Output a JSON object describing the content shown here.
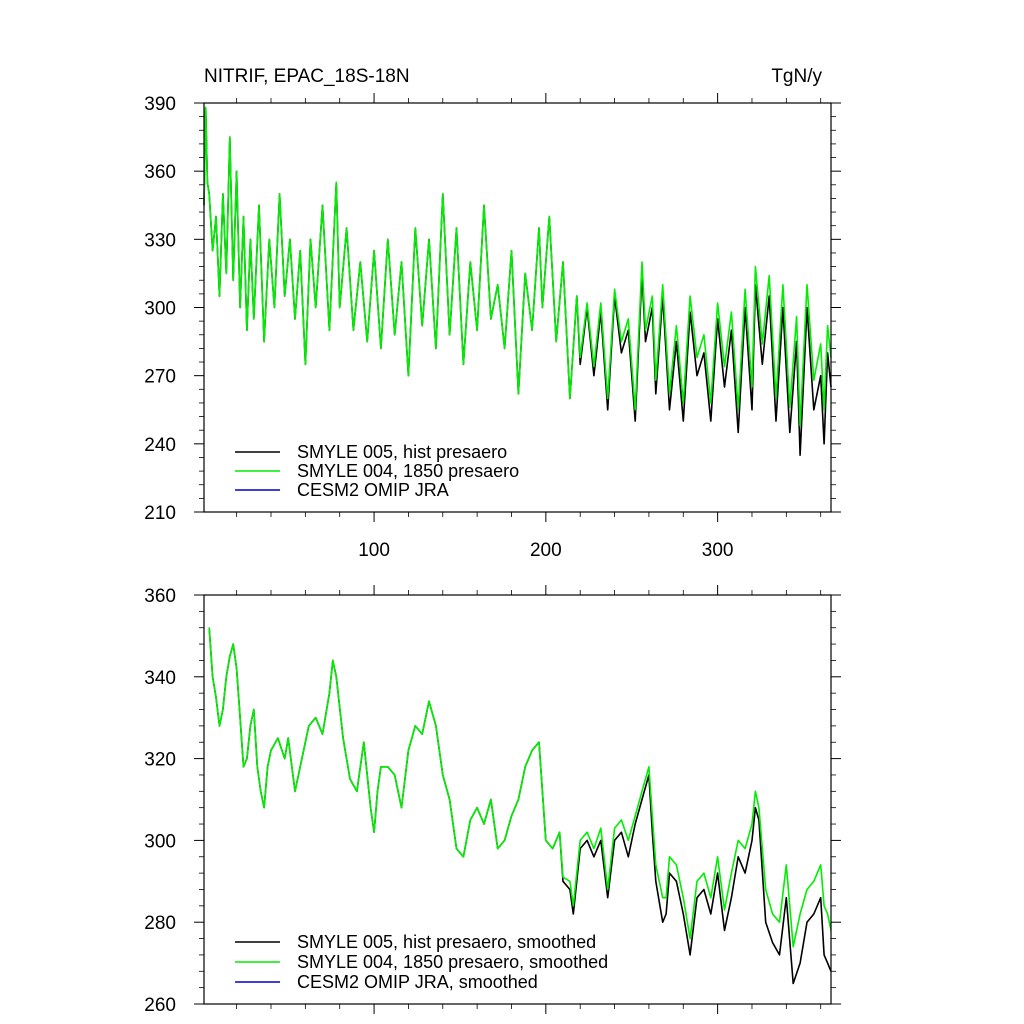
{
  "chart_data": [
    {
      "type": "line",
      "title": "NITRIF, EPAC_18S-18N",
      "units": "TgN/y",
      "xlim": [
        1,
        366
      ],
      "ylim": [
        210,
        390
      ],
      "yticks": [
        "210",
        "240",
        "270",
        "300",
        "330",
        "360",
        "390"
      ],
      "xticks": [
        "100",
        "200",
        "300"
      ],
      "legend_position": "bottom-left",
      "series": [
        {
          "name": "SMYLE 005, hist presaero",
          "color": "#000000",
          "x": [
            1,
            2,
            3,
            4,
            6,
            8,
            10,
            12,
            14,
            16,
            18,
            20,
            22,
            24,
            26,
            28,
            30,
            33,
            36,
            39,
            42,
            45,
            48,
            51,
            54,
            57,
            60,
            63,
            66,
            70,
            74,
            78,
            80,
            84,
            88,
            92,
            96,
            100,
            104,
            108,
            112,
            116,
            120,
            124,
            128,
            132,
            136,
            140,
            144,
            148,
            152,
            156,
            160,
            164,
            168,
            172,
            176,
            180,
            184,
            188,
            192,
            196,
            198,
            202,
            206,
            210,
            214,
            218,
            220,
            224,
            228,
            232,
            236,
            240,
            244,
            248,
            252,
            256,
            258,
            262,
            264,
            268,
            272,
            276,
            280,
            284,
            288,
            292,
            296,
            300,
            304,
            308,
            312,
            316,
            320,
            322,
            326,
            330,
            334,
            338,
            342,
            346,
            348,
            352,
            356,
            360,
            362,
            364,
            366
          ],
          "y": [
            345,
            388,
            355,
            350,
            325,
            340,
            305,
            350,
            315,
            375,
            312,
            360,
            300,
            340,
            290,
            330,
            295,
            345,
            285,
            330,
            300,
            350,
            305,
            330,
            295,
            325,
            275,
            330,
            300,
            345,
            290,
            355,
            300,
            335,
            290,
            320,
            285,
            325,
            282,
            330,
            288,
            320,
            270,
            335,
            292,
            330,
            282,
            350,
            288,
            335,
            275,
            320,
            290,
            345,
            295,
            310,
            282,
            325,
            262,
            315,
            290,
            335,
            300,
            340,
            285,
            320,
            260,
            305,
            275,
            300,
            270,
            298,
            255,
            305,
            280,
            290,
            250,
            315,
            285,
            300,
            262,
            305,
            255,
            285,
            250,
            298,
            270,
            280,
            250,
            295,
            265,
            290,
            245,
            300,
            255,
            310,
            275,
            305,
            250,
            300,
            245,
            285,
            235,
            300,
            255,
            270,
            240,
            280,
            265
          ]
        },
        {
          "name": "SMYLE 004, 1850 presaero",
          "color": "#00ee00",
          "x": [
            1,
            2,
            3,
            4,
            6,
            8,
            10,
            12,
            14,
            16,
            18,
            20,
            22,
            24,
            26,
            28,
            30,
            33,
            36,
            39,
            42,
            45,
            48,
            51,
            54,
            57,
            60,
            63,
            66,
            70,
            74,
            78,
            80,
            84,
            88,
            92,
            96,
            100,
            104,
            108,
            112,
            116,
            120,
            124,
            128,
            132,
            136,
            140,
            144,
            148,
            152,
            156,
            160,
            164,
            168,
            172,
            176,
            180,
            184,
            188,
            192,
            196,
            198,
            202,
            206,
            210,
            214,
            218,
            220,
            224,
            228,
            232,
            236,
            240,
            244,
            248,
            252,
            256,
            258,
            262,
            264,
            268,
            272,
            276,
            280,
            284,
            288,
            292,
            296,
            300,
            304,
            308,
            312,
            316,
            320,
            322,
            326,
            330,
            334,
            338,
            342,
            346,
            348,
            352,
            356,
            360,
            362,
            364,
            366
          ],
          "y": [
            345,
            388,
            355,
            350,
            325,
            340,
            305,
            350,
            315,
            375,
            312,
            360,
            300,
            340,
            290,
            330,
            295,
            345,
            285,
            330,
            300,
            350,
            305,
            330,
            295,
            325,
            275,
            330,
            300,
            345,
            290,
            355,
            300,
            335,
            290,
            320,
            285,
            325,
            282,
            330,
            288,
            320,
            270,
            335,
            292,
            330,
            282,
            350,
            288,
            335,
            275,
            320,
            290,
            345,
            295,
            310,
            282,
            325,
            262,
            315,
            290,
            335,
            300,
            340,
            285,
            320,
            260,
            305,
            278,
            302,
            274,
            302,
            260,
            308,
            285,
            295,
            255,
            320,
            290,
            305,
            268,
            310,
            262,
            292,
            258,
            305,
            278,
            288,
            258,
            302,
            274,
            298,
            255,
            308,
            265,
            318,
            284,
            314,
            260,
            310,
            256,
            296,
            248,
            310,
            268,
            284,
            255,
            292,
            278
          ]
        },
        {
          "name": "CESM2 OMIP JRA",
          "color": "#0000cc",
          "x": [],
          "y": []
        }
      ]
    },
    {
      "type": "line",
      "ylim": [
        260,
        360
      ],
      "yticks": [
        "260",
        "280",
        "300",
        "320",
        "340",
        "360"
      ],
      "xlim": [
        1,
        366
      ],
      "legend_position": "bottom-left",
      "series": [
        {
          "name": "SMYLE 005, hist presaero, smoothed",
          "color": "#000000",
          "x": [
            4,
            6,
            8,
            10,
            12,
            14,
            16,
            18,
            20,
            22,
            24,
            26,
            28,
            30,
            32,
            34,
            36,
            38,
            40,
            44,
            48,
            50,
            54,
            58,
            62,
            66,
            70,
            74,
            76,
            78,
            82,
            86,
            90,
            94,
            98,
            100,
            102,
            104,
            108,
            112,
            116,
            120,
            124,
            128,
            132,
            136,
            140,
            144,
            148,
            152,
            156,
            160,
            164,
            168,
            172,
            176,
            180,
            184,
            188,
            192,
            196,
            200,
            204,
            208,
            210,
            214,
            216,
            220,
            224,
            228,
            232,
            236,
            240,
            244,
            248,
            252,
            256,
            260,
            262,
            264,
            268,
            270,
            272,
            276,
            280,
            284,
            288,
            292,
            296,
            300,
            304,
            308,
            312,
            316,
            320,
            322,
            324,
            328,
            332,
            336,
            340,
            344,
            348,
            352,
            356,
            360,
            362,
            364,
            366
          ],
          "y": [
            352,
            340,
            335,
            328,
            332,
            340,
            345,
            348,
            342,
            330,
            318,
            320,
            328,
            332,
            318,
            312,
            308,
            318,
            322,
            325,
            320,
            325,
            312,
            320,
            328,
            330,
            326,
            336,
            344,
            340,
            325,
            315,
            312,
            324,
            308,
            302,
            312,
            318,
            318,
            316,
            308,
            322,
            328,
            326,
            334,
            328,
            316,
            310,
            298,
            296,
            305,
            308,
            304,
            310,
            298,
            300,
            306,
            310,
            318,
            322,
            324,
            300,
            298,
            302,
            290,
            288,
            282,
            298,
            300,
            296,
            300,
            286,
            300,
            302,
            296,
            304,
            310,
            316,
            302,
            290,
            280,
            282,
            292,
            290,
            282,
            272,
            286,
            288,
            282,
            292,
            278,
            286,
            296,
            292,
            300,
            308,
            305,
            280,
            275,
            272,
            286,
            265,
            270,
            280,
            282,
            286,
            272,
            270,
            268
          ]
        },
        {
          "name": "SMYLE 004, 1850 presaero, smoothed",
          "color": "#00ee00",
          "x": [
            4,
            6,
            8,
            10,
            12,
            14,
            16,
            18,
            20,
            22,
            24,
            26,
            28,
            30,
            32,
            34,
            36,
            38,
            40,
            44,
            48,
            50,
            54,
            58,
            62,
            66,
            70,
            74,
            76,
            78,
            82,
            86,
            90,
            94,
            98,
            100,
            102,
            104,
            108,
            112,
            116,
            120,
            124,
            128,
            132,
            136,
            140,
            144,
            148,
            152,
            156,
            160,
            164,
            168,
            172,
            176,
            180,
            184,
            188,
            192,
            196,
            200,
            204,
            208,
            210,
            214,
            216,
            220,
            224,
            228,
            232,
            236,
            240,
            244,
            248,
            252,
            256,
            260,
            262,
            264,
            268,
            270,
            272,
            276,
            280,
            284,
            288,
            292,
            296,
            300,
            304,
            308,
            312,
            316,
            320,
            322,
            324,
            328,
            332,
            336,
            340,
            344,
            348,
            352,
            356,
            360,
            362,
            364,
            366
          ],
          "y": [
            352,
            340,
            335,
            328,
            332,
            340,
            345,
            348,
            342,
            330,
            318,
            320,
            328,
            332,
            318,
            312,
            308,
            318,
            322,
            325,
            320,
            325,
            312,
            320,
            328,
            330,
            326,
            336,
            344,
            340,
            325,
            315,
            312,
            324,
            308,
            302,
            312,
            318,
            318,
            316,
            308,
            322,
            328,
            326,
            334,
            328,
            316,
            310,
            298,
            296,
            305,
            308,
            304,
            310,
            298,
            300,
            306,
            310,
            318,
            322,
            324,
            300,
            298,
            302,
            291,
            290,
            284,
            300,
            302,
            298,
            303,
            288,
            303,
            305,
            300,
            306,
            312,
            318,
            306,
            294,
            286,
            286,
            296,
            294,
            286,
            276,
            290,
            292,
            286,
            296,
            283,
            292,
            300,
            298,
            304,
            312,
            308,
            288,
            282,
            280,
            294,
            274,
            282,
            288,
            290,
            294,
            284,
            282,
            278
          ]
        },
        {
          "name": "CESM2 OMIP JRA, smoothed",
          "color": "#0000cc",
          "x": [],
          "y": []
        }
      ]
    }
  ]
}
